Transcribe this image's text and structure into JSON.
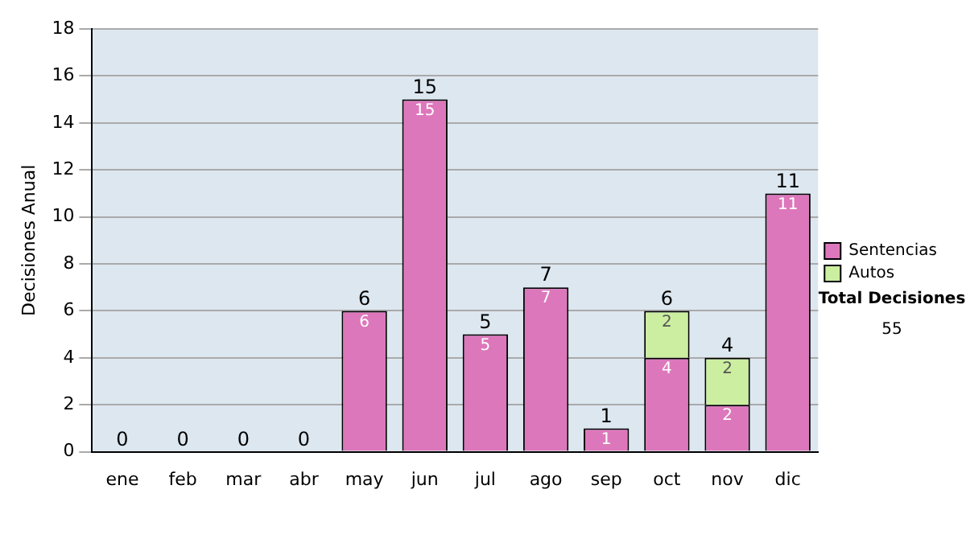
{
  "chart_data": {
    "type": "bar",
    "stacked": true,
    "ylabel": "Decisiones Anual",
    "categories": [
      "ene",
      "feb",
      "mar",
      "abr",
      "may",
      "jun",
      "jul",
      "ago",
      "sep",
      "oct",
      "nov",
      "dic"
    ],
    "series": [
      {
        "name": "Sentencias",
        "color": "#dd77bb",
        "values": [
          0,
          0,
          0,
          0,
          6,
          15,
          5,
          7,
          1,
          4,
          2,
          11
        ],
        "value_labels": [
          null,
          null,
          null,
          null,
          "6",
          "15",
          "5",
          "7",
          "1",
          "4",
          "2",
          "11"
        ]
      },
      {
        "name": "Autos",
        "color": "#cceea0",
        "values": [
          0,
          0,
          0,
          0,
          0,
          0,
          0,
          0,
          0,
          2,
          2,
          0
        ],
        "value_labels": [
          null,
          null,
          null,
          null,
          null,
          null,
          null,
          null,
          null,
          "2",
          "2",
          null
        ]
      }
    ],
    "totals": [
      "0",
      "0",
      "0",
      "0",
      "6",
      "15",
      "5",
      "7",
      "1",
      "6",
      "4",
      "11"
    ],
    "ylim": [
      0,
      18
    ],
    "yticks": [
      0,
      2,
      4,
      6,
      8,
      10,
      12,
      14,
      16,
      18
    ],
    "grid": "y",
    "legend": "right",
    "annotations": [
      "Total Decisiones",
      "55"
    ]
  }
}
